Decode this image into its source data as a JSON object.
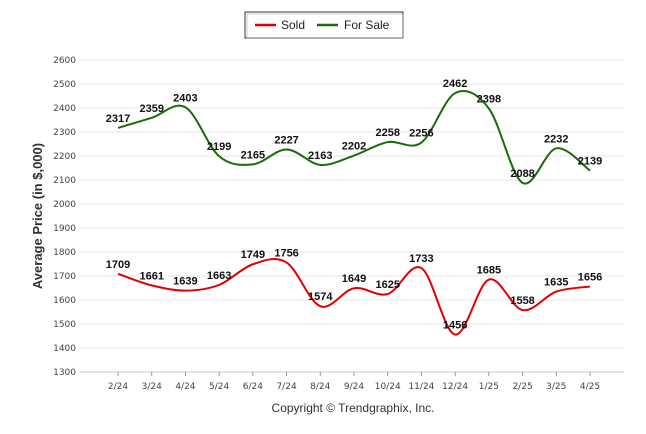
{
  "chart_data": {
    "type": "line",
    "categories": [
      "2/24",
      "3/24",
      "4/24",
      "5/24",
      "6/24",
      "7/24",
      "8/24",
      "9/24",
      "10/24",
      "11/24",
      "12/24",
      "1/25",
      "2/25",
      "3/25",
      "4/25"
    ],
    "series": [
      {
        "name": "Sold",
        "color": "#e00000",
        "values": [
          1709,
          1661,
          1639,
          1663,
          1749,
          1756,
          1574,
          1649,
          1625,
          1733,
          1456,
          1685,
          1558,
          1635,
          1656
        ]
      },
      {
        "name": "For Sale",
        "color": "#1a6b0a",
        "values": [
          2317,
          2359,
          2403,
          2199,
          2165,
          2227,
          2163,
          2202,
          2258,
          2256,
          2462,
          2398,
          2088,
          2232,
          2139
        ]
      }
    ],
    "ylabel": "Average Price (in $,000)",
    "xlabel": "",
    "ylim": [
      1300,
      2600
    ],
    "yticks": [
      1300,
      1400,
      1500,
      1600,
      1700,
      1800,
      1900,
      2000,
      2100,
      2200,
      2300,
      2400,
      2500,
      2600
    ],
    "grid": true,
    "legend": "top-center",
    "footer": "Copyright © Trendgraphix, Inc."
  }
}
